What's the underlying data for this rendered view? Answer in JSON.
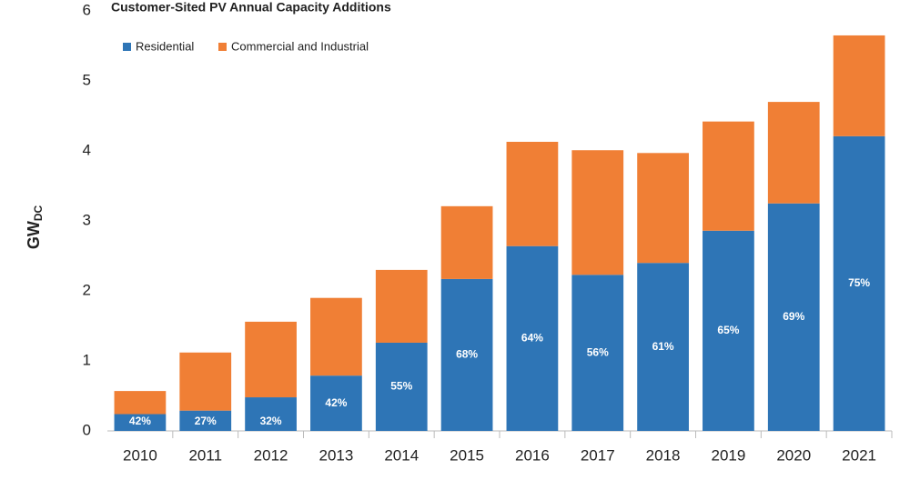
{
  "chart_data": {
    "type": "stacked_bar",
    "title": "Customer-Sited PV Annual Capacity Additions",
    "ylabel": "GW",
    "ylabel_sub": "DC",
    "categories": [
      "2010",
      "2011",
      "2012",
      "2013",
      "2014",
      "2015",
      "2016",
      "2017",
      "2018",
      "2019",
      "2020",
      "2021"
    ],
    "series": [
      {
        "name": "Residential",
        "color": "#2e75b6",
        "values": [
          0.24,
          0.29,
          0.48,
          0.79,
          1.26,
          2.17,
          2.64,
          2.23,
          2.4,
          2.86,
          3.25,
          4.21
        ]
      },
      {
        "name": "Commercial and Industrial",
        "color": "#f07f35",
        "values": [
          0.33,
          0.83,
          1.08,
          1.11,
          1.04,
          1.04,
          1.49,
          1.78,
          1.57,
          1.56,
          1.45,
          1.44
        ]
      }
    ],
    "residential_share_labels": [
      "42%",
      "27%",
      "32%",
      "42%",
      "55%",
      "68%",
      "64%",
      "56%",
      "61%",
      "65%",
      "69%",
      "75%"
    ],
    "ylim": [
      0,
      6
    ],
    "yticks": [
      0,
      1,
      2,
      3,
      4,
      5,
      6
    ],
    "grid": false,
    "legend": "top-left"
  }
}
